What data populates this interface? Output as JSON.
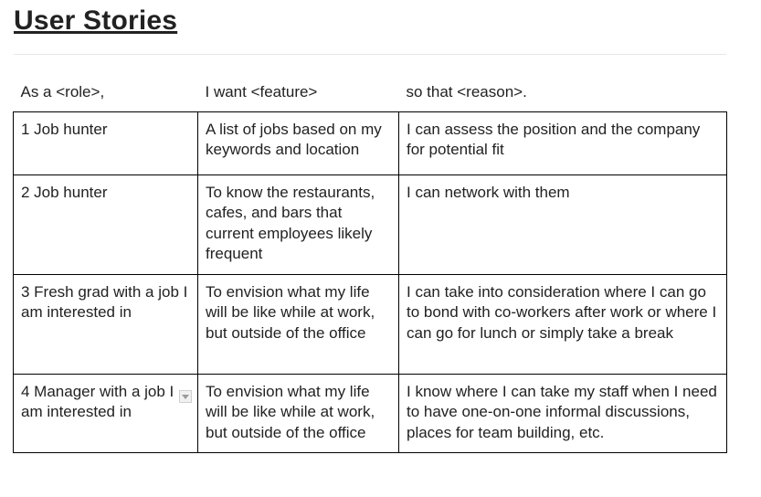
{
  "title": "User Stories",
  "table": {
    "headers": [
      "As a <role>,",
      "I want <feature>",
      "so that <reason>."
    ],
    "rows": [
      {
        "role": "1 Job hunter",
        "feature": "A list of jobs based on my keywords and location",
        "reason": "I can assess the position and the company for potential fit"
      },
      {
        "role": "2 Job hunter",
        "feature": "To know the restaurants, cafes, and bars that current employees likely frequent",
        "reason": "I can network with them"
      },
      {
        "role": "3 Fresh grad with a job I am interested in",
        "feature": "To envision what my life will be like while at work, but outside of the office",
        "reason": "I can take into consideration where I can go to bond with co-workers after work or where I can go for lunch or simply take a break"
      },
      {
        "role": "4 Manager with a job I am interested in",
        "feature": "To envision what my life will be like while at work, but outside of the office",
        "reason": "I know where I can take my staff when I need to have one-on-one informal discussions, places for team building, etc."
      }
    ]
  },
  "icons": {
    "cell_menu": "chevron-down-icon"
  },
  "colors": {
    "text": "#222222",
    "border": "#000000",
    "divider": "#e6e6e6"
  }
}
